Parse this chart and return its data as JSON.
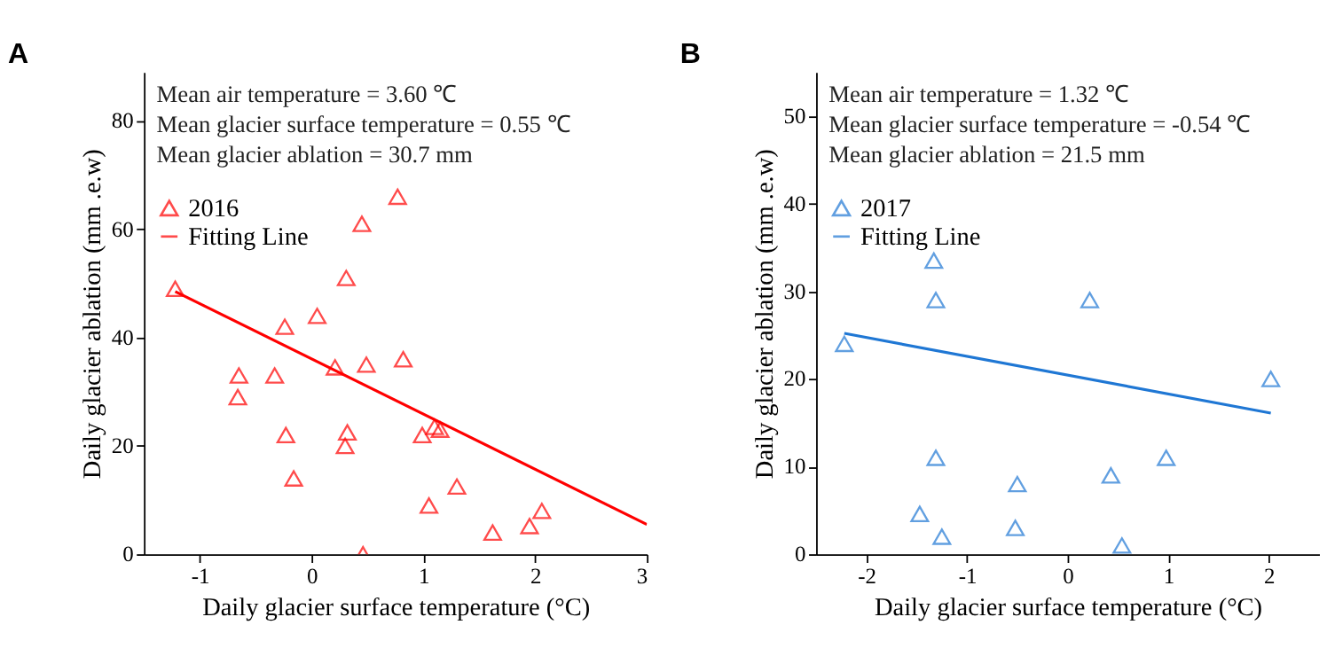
{
  "chart_data": [
    {
      "type": "scatter",
      "title": "A",
      "xlabel": "Daily glacier surface temperature (°C)",
      "ylabel": "Daily glacier ablation (mm .e.w)",
      "annotations": [
        "Mean air temperature = 3.60 ℃",
        "Mean glacier surface temperature = 0.55 ℃",
        "Mean glacier ablation = 30.7 mm"
      ],
      "xlim": [
        -1.5,
        3
      ],
      "xticks": [
        -1,
        0,
        1,
        2,
        3
      ],
      "ylim": [
        0,
        89
      ],
      "yticks": [
        0,
        20,
        40,
        60,
        80
      ],
      "grid": false,
      "legend": "top left",
      "series": [
        {
          "name": "2016",
          "color": "#ff0000",
          "marker": "triangle",
          "x": [
            -1.22,
            -0.65,
            -0.66,
            -0.33,
            -0.24,
            -0.23,
            -0.16,
            0.05,
            0.21,
            0.31,
            0.32,
            0.3,
            0.45,
            0.49,
            0.46,
            0.77,
            0.82,
            0.99,
            1.1,
            1.15,
            1.05,
            1.3,
            1.62,
            1.95,
            2.06
          ],
          "values": [
            49,
            33,
            29,
            33,
            42,
            22,
            14,
            44,
            34.5,
            51,
            22.5,
            20,
            61,
            35,
            0,
            66,
            36,
            22,
            23.5,
            23,
            9,
            12.5,
            4,
            5.2,
            8
          ]
        },
        {
          "name": "Fitting Line",
          "type": "line",
          "color": "#ff0000",
          "marker": "none",
          "x": [
            -1.22,
            3
          ],
          "values": [
            48.5,
            5.5
          ]
        }
      ]
    },
    {
      "type": "scatter",
      "title": "B",
      "xlabel": "Daily glacier surface temperature (°C)",
      "ylabel": "Daily glacier ablation (mm .e.w)",
      "annotations": [
        "Mean air temperature = 1.32 ℃",
        "Mean glacier surface temperature = -0.54 ℃",
        "Mean glacier ablation = 21.5 mm"
      ],
      "xlim": [
        -2.5,
        2.5
      ],
      "xticks": [
        -2,
        -1,
        0,
        1,
        2
      ],
      "ylim": [
        0,
        55
      ],
      "yticks": [
        0,
        10,
        20,
        30,
        40,
        50
      ],
      "grid": false,
      "legend": "top left",
      "series": [
        {
          "name": "2017",
          "color": "#1f77d4",
          "marker": "triangle",
          "x": [
            -2.22,
            -1.33,
            -1.31,
            0.22,
            2.02,
            -1.31,
            -1.47,
            -1.25,
            -0.5,
            -0.52,
            0.43,
            0.54,
            0.98
          ],
          "values": [
            24,
            33.5,
            29,
            29,
            20,
            11,
            4.6,
            2,
            8,
            3,
            9,
            1,
            11
          ]
        },
        {
          "name": "Fitting Line",
          "type": "line",
          "color": "#1f77d4",
          "marker": "none",
          "x": [
            -2.22,
            2.02
          ],
          "values": [
            25.2,
            16.1
          ]
        }
      ]
    }
  ]
}
